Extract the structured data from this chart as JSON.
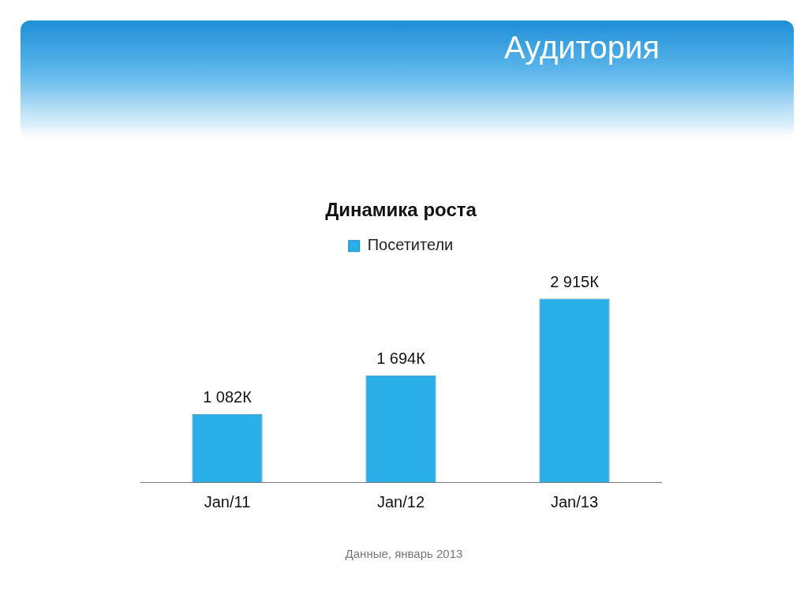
{
  "chart_data": {
    "type": "bar",
    "title": "Аудитория",
    "subtitle": "Динамика роста",
    "categories": [
      "Jan/11",
      "Jan/12",
      "Jan/13"
    ],
    "series": [
      {
        "name": "Посетители",
        "color": "#29aee8",
        "values": [
          1082,
          1694,
          2915
        ],
        "value_labels": [
          "1 082К",
          "1 694К",
          "2 915К"
        ]
      }
    ],
    "legend": "top",
    "grid": false,
    "annotations": [
      "Данные, январь 2013"
    ]
  }
}
